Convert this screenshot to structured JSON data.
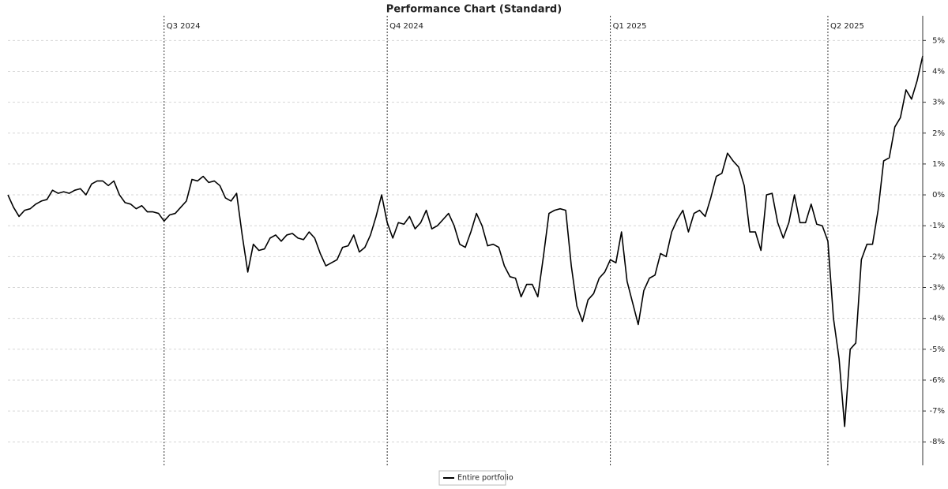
{
  "chart_data": {
    "type": "line",
    "title": "Performance Chart (Standard)",
    "series": [
      {
        "name": "Entire portfolio",
        "color": "#000000",
        "values": [
          0,
          -0.4,
          -0.7,
          -0.5,
          -0.45,
          -0.3,
          -0.2,
          -0.15,
          0.15,
          0.05,
          0.1,
          0.05,
          0.15,
          0.2,
          0.0,
          0.35,
          0.45,
          0.45,
          0.3,
          0.45,
          0.0,
          -0.25,
          -0.3,
          -0.45,
          -0.35,
          -0.55,
          -0.55,
          -0.6,
          -0.85,
          -0.65,
          -0.6,
          -0.4,
          -0.2,
          0.5,
          0.45,
          0.6,
          0.4,
          0.45,
          0.3,
          -0.1,
          -0.2,
          0.05,
          -1.3,
          -2.5,
          -1.6,
          -1.8,
          -1.75,
          -1.4,
          -1.3,
          -1.5,
          -1.3,
          -1.25,
          -1.4,
          -1.45,
          -1.2,
          -1.4,
          -1.9,
          -2.3,
          -2.2,
          -2.1,
          -1.7,
          -1.65,
          -1.3,
          -1.85,
          -1.7,
          -1.3,
          -0.7,
          0.0,
          -0.9,
          -1.4,
          -0.9,
          -0.95,
          -0.7,
          -1.1,
          -0.9,
          -0.5,
          -1.1,
          -1.0,
          -0.8,
          -0.6,
          -1.0,
          -1.6,
          -1.7,
          -1.2,
          -0.6,
          -1.0,
          -1.65,
          -1.6,
          -1.7,
          -2.3,
          -2.65,
          -2.7,
          -3.3,
          -2.9,
          -2.9,
          -3.3,
          -2.0,
          -0.6,
          -0.5,
          -0.45,
          -0.5,
          -2.3,
          -3.6,
          -4.1,
          -3.4,
          -3.2,
          -2.7,
          -2.5,
          -2.1,
          -2.2,
          -1.2,
          -2.8,
          -3.5,
          -4.2,
          -3.1,
          -2.7,
          -2.6,
          -1.9,
          -2.0,
          -1.2,
          -0.8,
          -0.5,
          -1.2,
          -0.6,
          -0.5,
          -0.7,
          -0.1,
          0.6,
          0.7,
          1.35,
          1.1,
          0.9,
          0.3,
          -1.2,
          -1.2,
          -1.8,
          0.0,
          0.05,
          -0.9,
          -1.4,
          -0.9,
          0.0,
          -0.9,
          -0.9,
          -0.3,
          -0.95,
          -1.0,
          -1.5,
          -4.0,
          -5.3,
          -7.5,
          -5.0,
          -4.8,
          -2.1,
          -1.6,
          -1.6,
          -0.5,
          1.1,
          1.2,
          2.2,
          2.5,
          3.4,
          3.1,
          3.7,
          4.5
        ]
      }
    ],
    "markers": [
      {
        "label": "Q3 2024",
        "index": 28
      },
      {
        "label": "Q4 2024",
        "index": 68
      },
      {
        "label": "Q1 2025",
        "index": 108
      },
      {
        "label": "Q2 2025",
        "index": 147
      }
    ],
    "ylim": [
      -8.76,
      5.8
    ],
    "yticks": [
      {
        "value": 5,
        "label": "5%"
      },
      {
        "value": 4,
        "label": "4%"
      },
      {
        "value": 3,
        "label": "3%"
      },
      {
        "value": 2,
        "label": "2%"
      },
      {
        "value": 1,
        "label": "1%"
      },
      {
        "value": 0,
        "label": "0%"
      },
      {
        "value": -1,
        "label": "-1%"
      },
      {
        "value": -2,
        "label": "-2%"
      },
      {
        "value": -3,
        "label": "-3%"
      },
      {
        "value": -4,
        "label": "-4%"
      },
      {
        "value": -5,
        "label": "-5%"
      },
      {
        "value": -6,
        "label": "-6%"
      },
      {
        "value": -7,
        "label": "-7%"
      },
      {
        "value": -8,
        "label": "-8%"
      }
    ],
    "grid": true,
    "y_axis_side": "right",
    "legend_position": "bottom"
  }
}
